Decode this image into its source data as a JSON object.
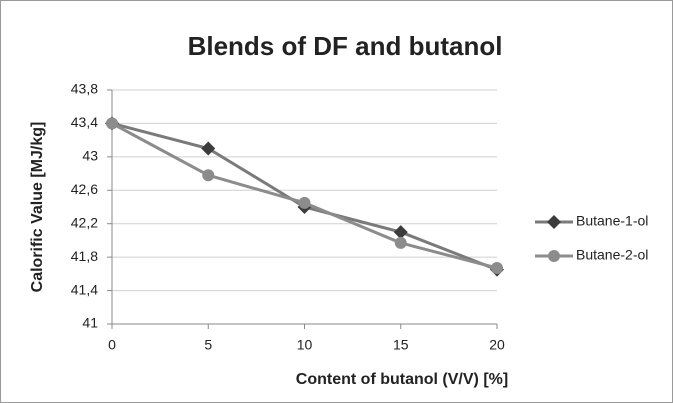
{
  "chart_data": {
    "type": "line",
    "title": "Blends of DF and butanol",
    "xlabel": "Content of butanol (V/V) [%]",
    "ylabel": "Calorific Value [MJ/kg]",
    "x": [
      0,
      5,
      10,
      15,
      20
    ],
    "series": [
      {
        "name": "Butane-1-ol",
        "color": "#3c3c3c",
        "line_color": "#7a7a7a",
        "marker": "diamond",
        "values": [
          43.4,
          43.1,
          42.4,
          42.1,
          41.65
        ]
      },
      {
        "name": "Butane-2-ol",
        "color": "#8c8c8c",
        "line_color": "#8c8c8c",
        "marker": "circle",
        "values": [
          43.4,
          42.78,
          42.45,
          41.97,
          41.67
        ]
      }
    ],
    "xlim": [
      0,
      20
    ],
    "xticks": [
      0,
      5,
      10,
      15,
      20
    ],
    "ylim": [
      41,
      43.8
    ],
    "yticks": [
      41,
      {
        "value": 41.4,
        "label": "41,4"
      },
      {
        "value": 41.8,
        "label": "41,8"
      },
      {
        "value": 42.2,
        "label": "42,2"
      },
      {
        "value": 42.6,
        "label": "42,6"
      },
      43,
      {
        "value": 43.4,
        "label": "43,4"
      },
      {
        "value": 43.8,
        "label": "43,8"
      }
    ],
    "grid": true,
    "legend": "right"
  }
}
